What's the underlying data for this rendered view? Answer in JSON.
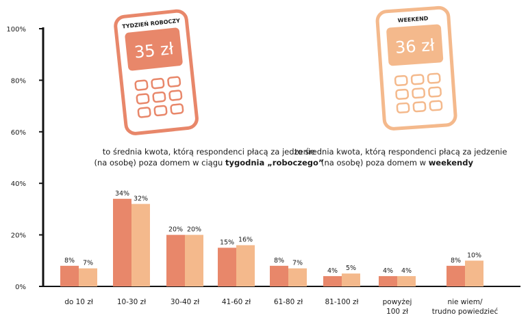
{
  "colors": {
    "workday": "#e8876a",
    "weekend": "#f4b98c",
    "axis": "#111111",
    "phone_workday": "#e8876a",
    "phone_weekend": "#f4b98c"
  },
  "phones": [
    {
      "label": "TYDZIEŃ ROBOCZY",
      "amount": "35 zł",
      "icon": "phone-icon"
    },
    {
      "label": "WEEKEND",
      "amount": "36 zł",
      "icon": "phone-icon"
    }
  ],
  "captions": {
    "workday": {
      "line1": "to średnia kwota, którą respondenci płacą za jedzenie",
      "line2_pre": "(na osobę) poza domem w ciągu ",
      "line2_bold": "tygodnia „roboczego”"
    },
    "weekend": {
      "line1": "to średnia kwota, którą respondenci płacą za jedzenie",
      "line2_pre": "(na osobę) poza domem w ",
      "line2_bold": "weekendy"
    }
  },
  "chart_data": {
    "type": "bar",
    "categories": [
      [
        "do 10 zł"
      ],
      [
        "10-30 zł"
      ],
      [
        "30-40 zł"
      ],
      [
        "41-60 zł"
      ],
      [
        "61-80 zł"
      ],
      [
        "81-100 zł"
      ],
      [
        "powyżej",
        "100 zł"
      ],
      [
        "nie wiem/",
        "trudno powiedzieć"
      ]
    ],
    "series": [
      {
        "values": [
          8,
          34,
          20,
          15,
          8,
          4,
          4,
          8
        ],
        "labels": [
          "8%",
          "34%",
          "20%",
          "15%",
          "8%",
          "4%",
          "4%",
          "8%"
        ]
      },
      {
        "values": [
          7,
          32,
          20,
          16,
          7,
          5,
          4,
          10
        ],
        "labels": [
          "7%",
          "32%",
          "20%",
          "16%",
          "7%",
          "5%",
          "4%",
          "10%"
        ]
      }
    ],
    "yticks": [
      "0%",
      "20%",
      "40%",
      "60%",
      "80%",
      "100%"
    ],
    "ylim": [
      0,
      100
    ],
    "grid": false
  }
}
